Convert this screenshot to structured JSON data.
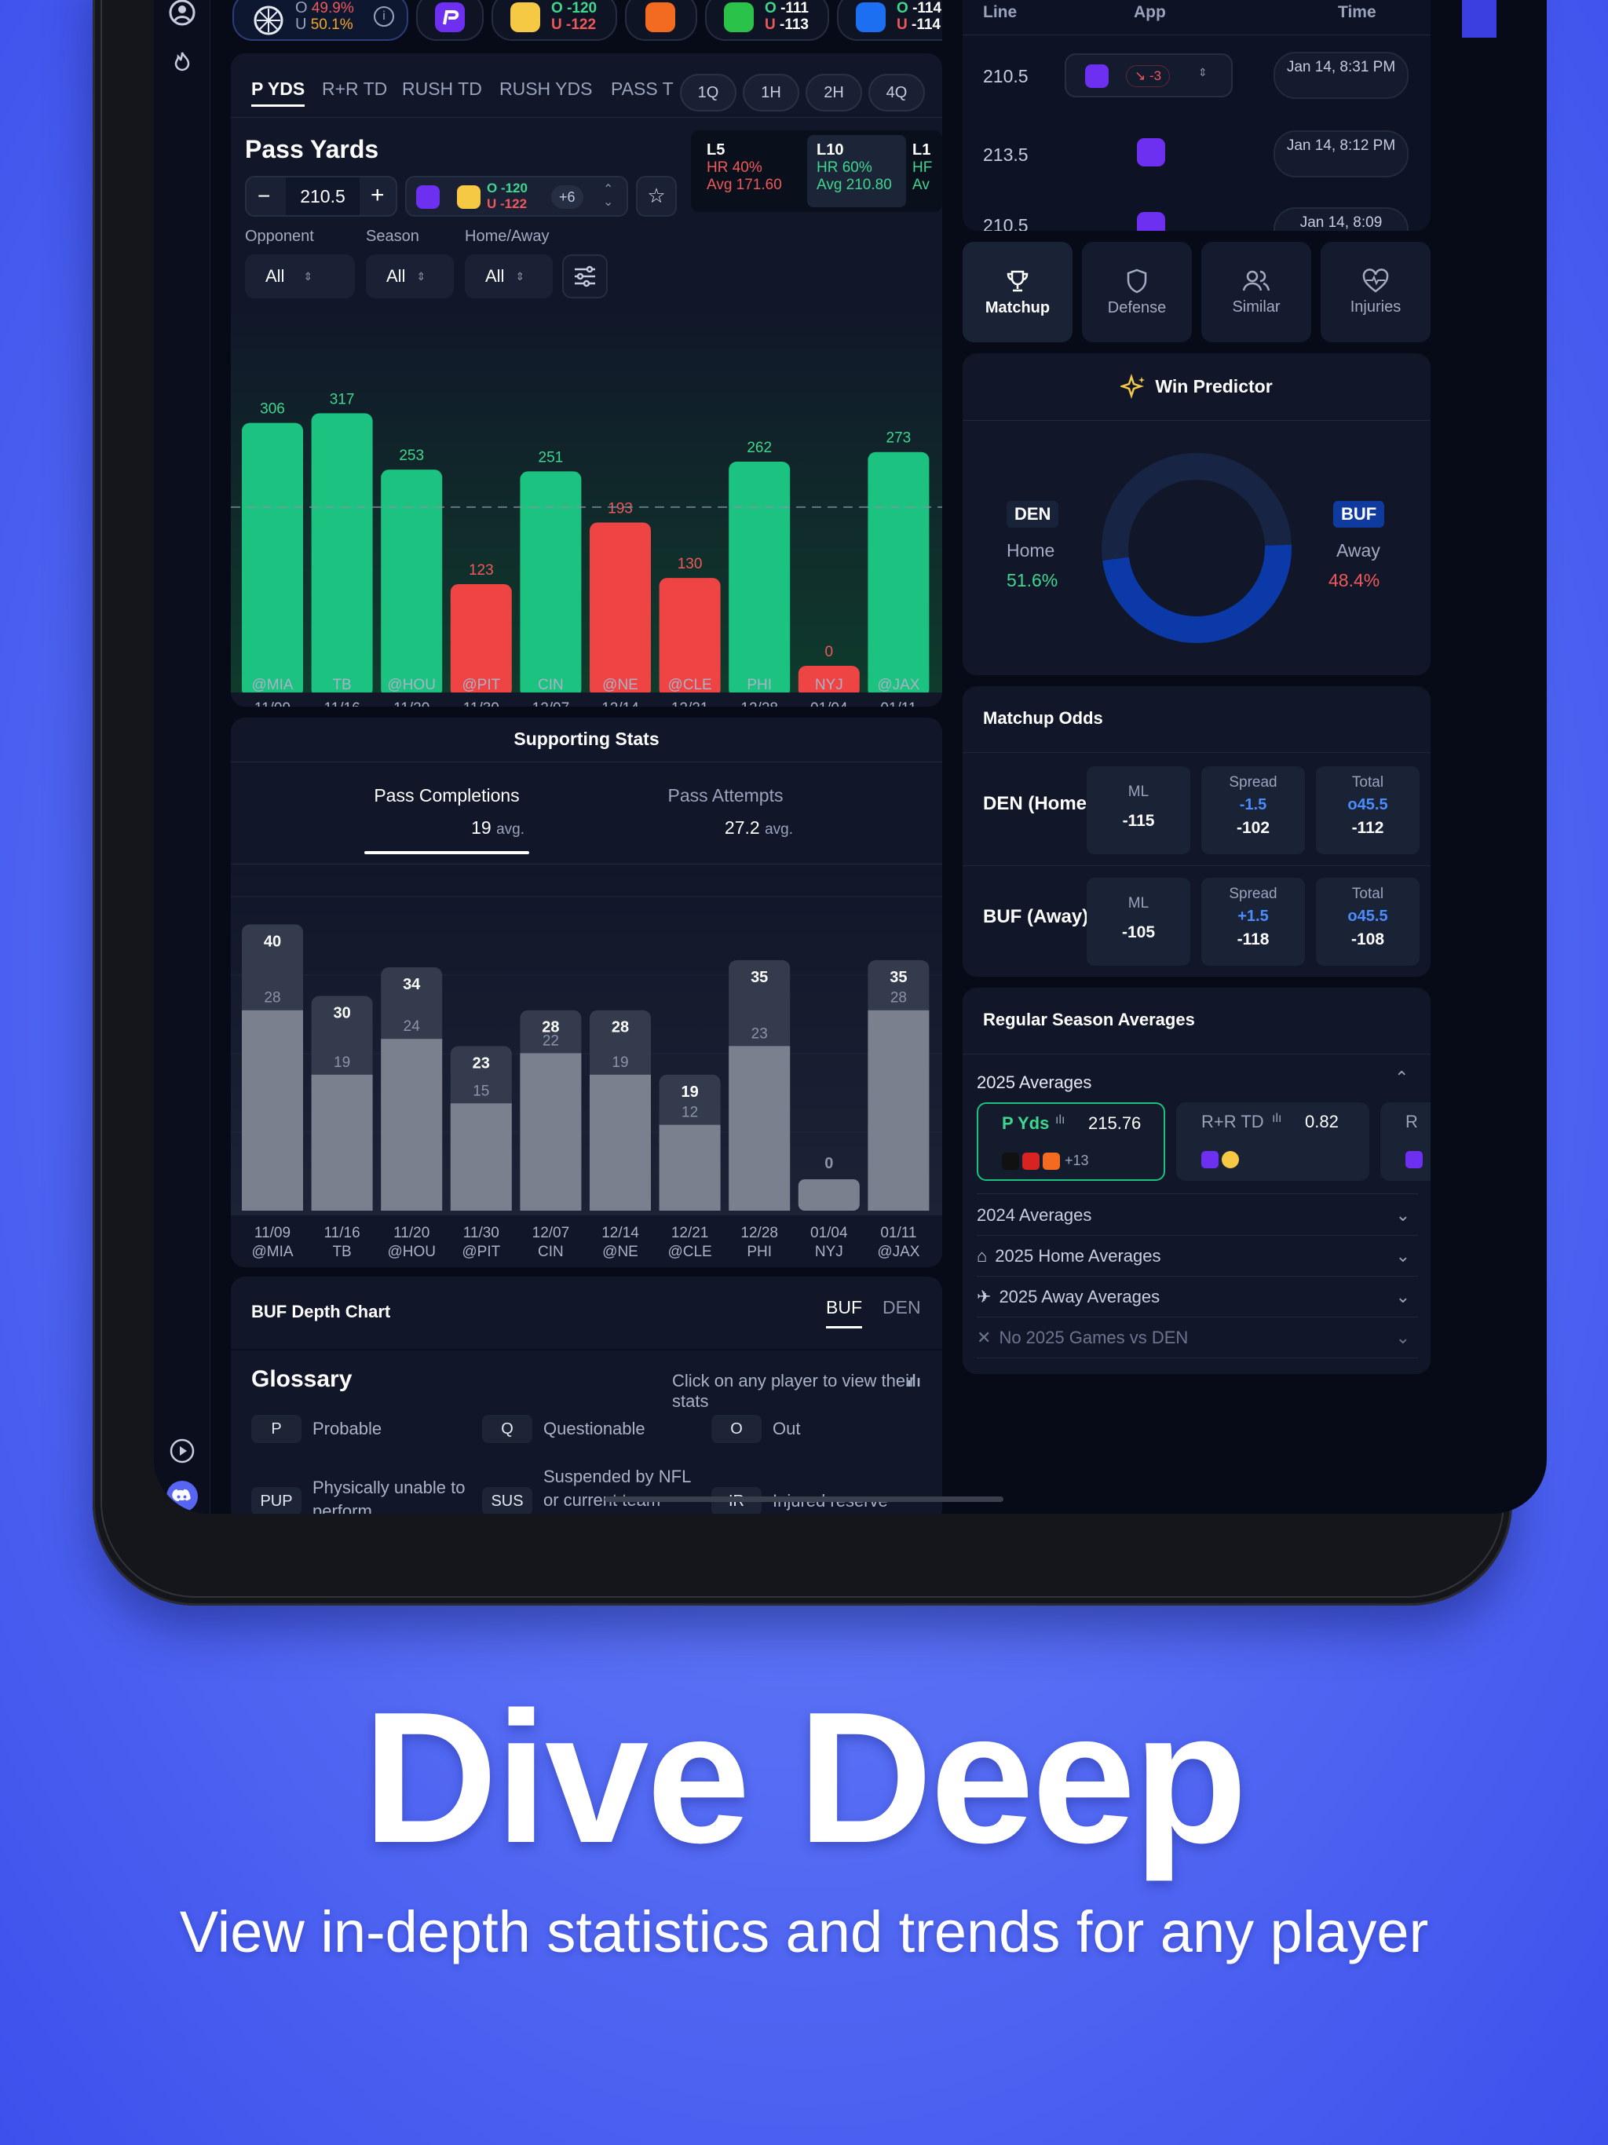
{
  "promo": {
    "title": "Dive Deep",
    "subtitle": "View in-depth statistics and trends for any player"
  },
  "colors": {
    "background": "#4f63f3",
    "accent_green": "#1cc27f",
    "accent_red": "#ef4444",
    "panel": "#111729",
    "blue_link": "#4b8dff"
  },
  "top_odds": {
    "prize_over": "49.9%",
    "prize_under": "50.1%",
    "o_label": "O",
    "u_label": "U",
    "books": [
      {
        "icon": "sleeper-icon",
        "over": "-120",
        "under": "-122"
      },
      {
        "icon": "draftkings-icon"
      },
      {
        "icon": "dk-green-icon",
        "over": "-111",
        "under": "-113"
      },
      {
        "icon": "shield-book-icon",
        "over": "-114",
        "under": "-114"
      }
    ]
  },
  "stat_tabs": [
    "P YDS",
    "R+R TD",
    "RUSH TD",
    "RUSH YDS",
    "PASS T"
  ],
  "period_chips": [
    "1Q",
    "1H",
    "2H",
    "4Q"
  ],
  "pass_yards": {
    "title": "Pass Yards",
    "line": "210.5",
    "minus": "−",
    "plus": "+",
    "book_over": "O -120",
    "book_under": "U -122",
    "more_books": "+6",
    "star": "☆",
    "splits": [
      {
        "label": "L5",
        "hr": "HR 40%",
        "avg": "Avg 171.60"
      },
      {
        "label": "L10",
        "hr": "HR 60%",
        "avg": "Avg 210.80"
      },
      {
        "label": "L1",
        "hr": "HF",
        "avg": "Av"
      }
    ],
    "filters": [
      {
        "label": "Opponent",
        "value": "All"
      },
      {
        "label": "Season",
        "value": "All"
      },
      {
        "label": "Home/Away",
        "value": "All"
      }
    ]
  },
  "chart_data": [
    {
      "type": "bar",
      "title": "Pass Yards",
      "threshold": 210.5,
      "ylim": [
        0,
        330
      ],
      "categories": [
        "11/09 @MIA",
        "11/16 TB",
        "11/20 @HOU",
        "11/30 @PIT",
        "12/07 CIN",
        "12/14 @NE",
        "12/21 @CLE",
        "12/28 PHI",
        "01/04 NYJ",
        "01/11 @JAX"
      ],
      "dates": [
        "11/09",
        "11/16",
        "11/20",
        "11/30",
        "12/07",
        "12/14",
        "12/21",
        "12/28",
        "01/04",
        "01/11"
      ],
      "opponents": [
        "@MIA",
        "TB",
        "@HOU",
        "@PIT",
        "CIN",
        "@NE",
        "@CLE",
        "PHI",
        "NYJ",
        "@JAX"
      ],
      "values": [
        306,
        317,
        253,
        123,
        251,
        193,
        130,
        262,
        0,
        273
      ]
    },
    {
      "type": "bar",
      "title": "Supporting Stats",
      "ylim": [
        0,
        43
      ],
      "categories": [
        "11/09 @MIA",
        "11/16 TB",
        "11/20 @HOU",
        "11/30 @PIT",
        "12/07 CIN",
        "12/14 @NE",
        "12/21 @CLE",
        "12/28 PHI",
        "01/04 NYJ",
        "01/11 @JAX"
      ],
      "series": [
        {
          "name": "Pass Attempts",
          "values": [
            40,
            30,
            34,
            23,
            28,
            28,
            19,
            35,
            0,
            35
          ]
        },
        {
          "name": "Pass Completions",
          "values": [
            28,
            19,
            24,
            15,
            22,
            19,
            12,
            23,
            0,
            28
          ]
        }
      ]
    }
  ],
  "supporting": {
    "title": "Supporting Stats",
    "tabs": [
      {
        "label": "Pass Completions",
        "value": "19",
        "suffix": "avg."
      },
      {
        "label": "Pass Attempts",
        "value": "27.2",
        "suffix": "avg."
      }
    ]
  },
  "depth": {
    "title": "BUF Depth Chart",
    "tabs": [
      "BUF",
      "DEN"
    ],
    "glossary_title": "Glossary",
    "hint": "Click on any player to view their stats",
    "codes": [
      {
        "code": "P",
        "text": "Probable"
      },
      {
        "code": "Q",
        "text": "Questionable"
      },
      {
        "code": "O",
        "text": "Out"
      },
      {
        "code": "PUP",
        "text": "Physically unable to perform"
      },
      {
        "code": "SUS",
        "text": "Suspended by NFL or current team"
      },
      {
        "code": "IR",
        "text": "Injured reserve"
      }
    ]
  },
  "line_history": {
    "headers": [
      "Line",
      "App",
      "Time"
    ],
    "rows": [
      {
        "line": "210.5",
        "move": "-3",
        "time": "Jan 14, 8:31 PM"
      },
      {
        "line": "213.5",
        "time": "Jan 14, 8:12 PM"
      },
      {
        "line": "210.5",
        "time": "Jan 14, 8:09"
      }
    ]
  },
  "side_tabs": [
    {
      "label": "Matchup",
      "icon": "trophy-icon"
    },
    {
      "label": "Defense",
      "icon": "shield-icon"
    },
    {
      "label": "Similar",
      "icon": "users-icon"
    },
    {
      "label": "Injuries",
      "icon": "heart-pulse-icon"
    }
  ],
  "win_predictor": {
    "title": "Win Predictor",
    "home": {
      "abbr": "DEN",
      "label": "Home",
      "pct": "51.6%",
      "value": 51.6
    },
    "away": {
      "abbr": "BUF",
      "label": "Away",
      "pct": "48.4%",
      "value": 48.4
    }
  },
  "matchup_odds": {
    "title": "Matchup Odds",
    "rows": [
      {
        "team": "DEN (Home",
        "ml_label": "ML",
        "ml": "-115",
        "spread_label": "Spread",
        "spread": "-1.5",
        "spread_odds": "-102",
        "total_label": "Total",
        "total": "o45.5",
        "total_odds": "-112"
      },
      {
        "team": "BUF (Away)",
        "ml_label": "ML",
        "ml": "-105",
        "spread_label": "Spread",
        "spread": "+1.5",
        "spread_odds": "-118",
        "total_label": "Total",
        "total": "o45.5",
        "total_odds": "-108"
      }
    ]
  },
  "season_avgs": {
    "title": "Regular Season Averages",
    "section_2025": "2025 Averages",
    "cards": [
      {
        "label": "P Yds",
        "value": "215.76",
        "more": "+13"
      },
      {
        "label": "R+R TD",
        "value": "0.82"
      },
      {
        "label": "R"
      }
    ],
    "rows": [
      "2024 Averages",
      "2025 Home Averages",
      "2025 Away Averages",
      "No 2025 Games vs DEN"
    ]
  }
}
